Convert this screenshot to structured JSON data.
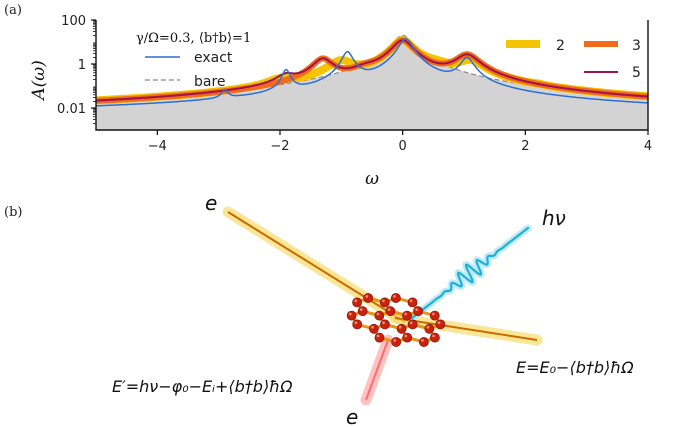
{
  "panel_a_label": "(a)",
  "panel_b_label": "(b)",
  "chart_data": {
    "type": "line",
    "title": "",
    "xlabel": "ω",
    "ylabel": "A(ω)",
    "xlim": [
      -5,
      4
    ],
    "ylim_log10": [
      -3,
      2
    ],
    "x_ticks": [
      -4,
      -2,
      0,
      2,
      4
    ],
    "x_tick_labels": [
      "−4",
      "−2",
      "0",
      "2",
      "4"
    ],
    "y_ticks_log10": [
      -2,
      0,
      2
    ],
    "y_tick_labels": [
      "0.01",
      "1",
      "100"
    ],
    "annotation": "γ/Ω=0.3, ⟨b†b⟩=1",
    "baseline": 0.005,
    "series": [
      {
        "name": "bare",
        "label": "bare",
        "style": "dashed-fill",
        "color": "#8a8a8a",
        "peaks": [
          {
            "pos": 0.0,
            "amp": 20.0,
            "width": 0.15
          }
        ]
      },
      {
        "name": "2",
        "label": "2",
        "style": "thick",
        "color": "#f5c400",
        "peaks": [
          {
            "pos": 0.0,
            "amp": 12.0,
            "width": 0.15
          },
          {
            "pos": 1.1,
            "amp": 1.2,
            "width": 0.2
          },
          {
            "pos": -1.0,
            "amp": 1.2,
            "width": 0.2
          },
          {
            "pos": 2.2,
            "amp": 0.01,
            "width": 0.1
          },
          {
            "pos": -2.0,
            "amp": 0.1,
            "width": 0.2
          },
          {
            "pos": 0.5,
            "amp": 0.6,
            "width": 0.3
          }
        ]
      },
      {
        "name": "3",
        "label": "3",
        "style": "thick",
        "color": "#f06a1a",
        "peaks": [
          {
            "pos": 0.0,
            "amp": 12.0,
            "width": 0.15
          },
          {
            "pos": 1.05,
            "amp": 2.5,
            "width": 0.18
          },
          {
            "pos": -1.3,
            "amp": 1.6,
            "width": 0.15
          },
          {
            "pos": -0.6,
            "amp": 0.3,
            "width": 0.2
          }
        ]
      },
      {
        "name": "5",
        "label": "5",
        "style": "thin",
        "color": "#a0124a",
        "peaks": [
          {
            "pos": 0.0,
            "amp": 12.0,
            "width": 0.15
          },
          {
            "pos": 1.05,
            "amp": 2.5,
            "width": 0.18
          },
          {
            "pos": -1.3,
            "amp": 1.6,
            "width": 0.15
          },
          {
            "pos": -1.9,
            "amp": 0.2,
            "width": 0.15
          },
          {
            "pos": -0.6,
            "amp": 0.3,
            "width": 0.2
          }
        ]
      },
      {
        "name": "exact",
        "label": "exact",
        "style": "thin",
        "color": "#2c6fd6",
        "peaks": [
          {
            "pos": 0.05,
            "amp": 14.0,
            "width": 0.1
          },
          {
            "pos": 1.05,
            "amp": 1.8,
            "width": 0.1
          },
          {
            "pos": -0.9,
            "amp": 3.5,
            "width": 0.08
          },
          {
            "pos": -1.9,
            "amp": 0.5,
            "width": 0.06
          },
          {
            "pos": -2.9,
            "amp": 0.04,
            "width": 0.05
          }
        ]
      }
    ],
    "legend": {
      "left": [
        "exact",
        "bare"
      ],
      "right": [
        "2",
        "3",
        "5"
      ]
    }
  },
  "diagram": {
    "electron_in_label": "e",
    "electron_out_label": "e",
    "photon_label": "hν",
    "energy_out": "E=E₀−⟨b†b⟩ħΩ",
    "energy_prime": "E′=hν−φ₀−Eᵢ+⟨b†b⟩ħΩ",
    "colors": {
      "electron": "#e8b400",
      "photon": "#1fb0d8",
      "recoil": "#ff7d7d",
      "atom": "#c8210e",
      "bond": "#e6951a"
    }
  }
}
